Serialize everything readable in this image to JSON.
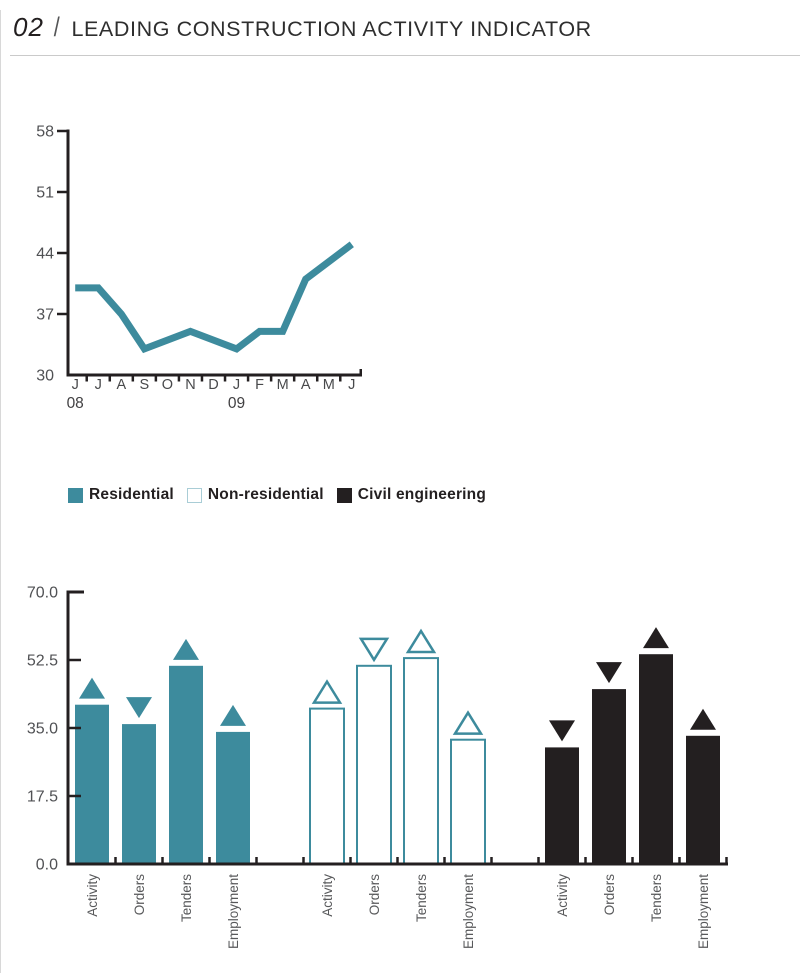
{
  "header": {
    "number": "02",
    "separator": "/",
    "title": "LEADING CONSTRUCTION ACTIVITY INDICATOR"
  },
  "legend": {
    "items": [
      {
        "label": "Residential",
        "swatch_style": "teal-filled"
      },
      {
        "label": "Non-residential",
        "swatch_style": "teal-outline"
      },
      {
        "label": "Civil engineering",
        "swatch_style": "black-filled"
      }
    ]
  },
  "colors": {
    "teal": "#3d8b9d",
    "teal_outline_light": "#a9cdd6",
    "ink": "#231f20",
    "label_gray": "#58595b",
    "tick_label_gray": "#505154",
    "month_label_gray": "#48494b",
    "year_label_gray": "#414042",
    "rule_gray": "#cacaca"
  },
  "chart_data": [
    {
      "type": "line",
      "series_name": "Leading construction activity indicator",
      "x_tick_labels": [
        "J",
        "J",
        "A",
        "S",
        "O",
        "N",
        "D",
        "J",
        "F",
        "M",
        "A",
        "M",
        "J"
      ],
      "year_labels": [
        {
          "text": "08",
          "month_index": 0
        },
        {
          "text": "09",
          "month_index": 7
        }
      ],
      "values": [
        40,
        40,
        37,
        33,
        34,
        35,
        34,
        33,
        35,
        35,
        41,
        43,
        45
      ],
      "ylim": [
        30,
        58
      ],
      "yticks": [
        30,
        37,
        44,
        51,
        58
      ],
      "grid": false,
      "legend_position": "none"
    },
    {
      "type": "bar",
      "categories": [
        "Activity",
        "Orders",
        "Tenders",
        "Employment"
      ],
      "series": [
        {
          "name": "Residential",
          "style": "teal-filled",
          "values": [
            41,
            36,
            51,
            34
          ],
          "trend": [
            "up",
            "down",
            "up",
            "up"
          ]
        },
        {
          "name": "Non-residential",
          "style": "teal-outline",
          "values": [
            40,
            51,
            53,
            32
          ],
          "trend": [
            "up",
            "down",
            "up",
            "up"
          ]
        },
        {
          "name": "Civil engineering",
          "style": "black-filled",
          "values": [
            30,
            45,
            54,
            33
          ],
          "trend": [
            "down",
            "down",
            "up",
            "up"
          ]
        }
      ],
      "ylim": [
        0,
        70
      ],
      "yticks": [
        0,
        17.5,
        35,
        52.5,
        70
      ],
      "ytick_labels": [
        "0.0",
        "17.5",
        "35.0",
        "52.5",
        "70.0"
      ],
      "grid": false,
      "legend_position": "above"
    }
  ]
}
